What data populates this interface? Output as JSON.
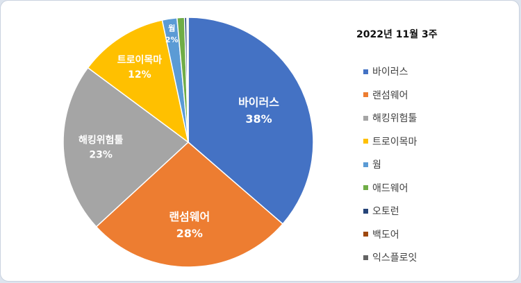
{
  "chart_data": {
    "type": "pie",
    "title": "2022년  11월 3주",
    "legend_position": "right",
    "slices": [
      {
        "name": "바이러스",
        "value": 38,
        "color": "#4472c4",
        "data_label": "38%"
      },
      {
        "name": "랜섬웨어",
        "value": 28,
        "color": "#ed7d31",
        "data_label": "28%"
      },
      {
        "name": "해킹위험툴",
        "value": 23,
        "color": "#a5a5a5",
        "data_label": "23%"
      },
      {
        "name": "트로이목마",
        "value": 12,
        "color": "#ffc000",
        "data_label": "12%"
      },
      {
        "name": "웜",
        "value": 2,
        "color": "#5b9bd5",
        "data_label": "2%"
      },
      {
        "name": "애드웨어",
        "value": 1,
        "color": "#70ad47",
        "data_label": ""
      },
      {
        "name": "오토런",
        "value": 0.3,
        "color": "#264478",
        "data_label": ""
      },
      {
        "name": "백도어",
        "value": 0.1,
        "color": "#9e480e",
        "data_label": ""
      },
      {
        "name": "익스플로잇",
        "value": 0.1,
        "color": "#636363",
        "data_label": ""
      }
    ]
  }
}
